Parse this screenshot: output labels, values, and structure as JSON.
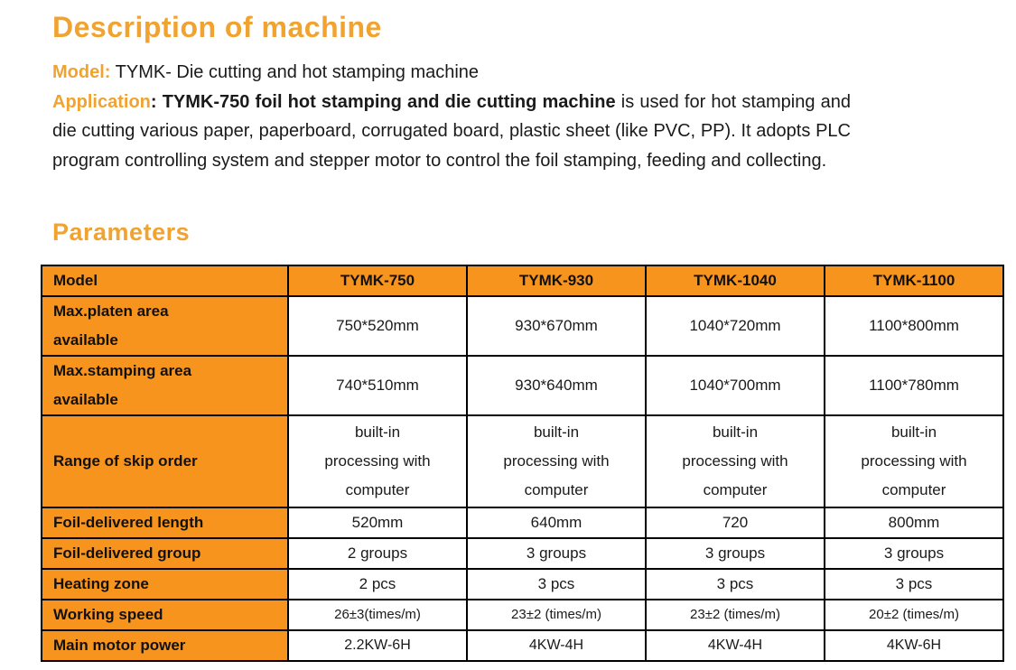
{
  "colors": {
    "heading_orange": "#F0A330",
    "table_orange": "#F7941E",
    "border": "#000000",
    "text": "#1A1A1A"
  },
  "description": {
    "title": "Description of machine",
    "model": {
      "label": "Model:",
      "text": " TYMK- Die cutting and hot stamping machine"
    },
    "application": {
      "label": "Application",
      "colon": ": ",
      "bold_text": "TYMK-750 foil hot stamping and die cutting machine",
      "text": " is used for hot stamping and die cutting various paper, paperboard, corrugated board, plastic sheet (like PVC, PP). It adopts PLC program controlling system and stepper motor to control the foil stamping, feeding and collecting."
    }
  },
  "parameters": {
    "title": "Parameters",
    "table": {
      "columns": [
        "Model",
        "TYMK-750",
        "TYMK-930",
        "TYMK-1040",
        "TYMK-1100"
      ],
      "rows": [
        {
          "label": "Max.platen area\navailable",
          "values": [
            "750*520mm",
            "930*670mm",
            "1040*720mm",
            "1100*800mm"
          ]
        },
        {
          "label": "Max.stamping area\navailable",
          "values": [
            "740*510mm",
            "930*640mm",
            "1040*700mm",
            "1100*780mm"
          ]
        },
        {
          "label": "Range of skip order",
          "values": [
            "built-in\nprocessing with\ncomputer",
            "built-in\nprocessing with\ncomputer",
            "built-in\nprocessing with\ncomputer",
            "built-in\nprocessing with\ncomputer"
          ]
        },
        {
          "label": "Foil-delivered length",
          "values": [
            "520mm",
            "640mm",
            "720",
            "800mm"
          ]
        },
        {
          "label": "Foil-delivered group",
          "values": [
            "2 groups",
            "3 groups",
            "3 groups",
            "3 groups"
          ]
        },
        {
          "label": "Heating zone",
          "values": [
            "2 pcs",
            "3 pcs",
            "3 pcs",
            "3 pcs"
          ]
        },
        {
          "label": "Working speed",
          "values": [
            "26±3(times/m)",
            "23±2 (times/m)",
            "23±2 (times/m)",
            "20±2 (times/m)"
          ]
        },
        {
          "label": "Main motor power",
          "values": [
            "2.2KW-6H",
            "4KW-4H",
            "4KW-4H",
            "4KW-6H"
          ]
        }
      ]
    }
  }
}
